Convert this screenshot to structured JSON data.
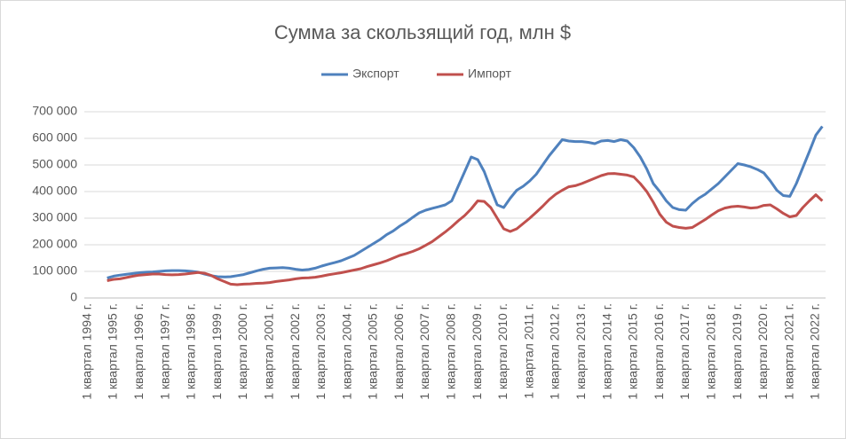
{
  "chart_data": {
    "type": "line",
    "title": "Сумма за скользящий год, млн $",
    "categories": [
      "1 квартал 1994 г.",
      null,
      null,
      null,
      "1 квартал 1995 г.",
      null,
      null,
      null,
      "1 квартал 1996 г.",
      null,
      null,
      null,
      "1 квартал 1997 г.",
      null,
      null,
      null,
      "1 квартал 1998 г.",
      null,
      null,
      null,
      "1 квартал 1999 г.",
      null,
      null,
      null,
      "1 квартал 2000 г.",
      null,
      null,
      null,
      "1 квартал 2001 г.",
      null,
      null,
      null,
      "1 квартал 2002 г.",
      null,
      null,
      null,
      "1 квартал 2003 г.",
      null,
      null,
      null,
      "1 квартал 2004 г.",
      null,
      null,
      null,
      "1 квартал 2005 г.",
      null,
      null,
      null,
      "1 квартал 2006 г.",
      null,
      null,
      null,
      "1 квартал 2007 г.",
      null,
      null,
      null,
      "1 квартал 2008 г.",
      null,
      null,
      null,
      "1 квартал 2009 г.",
      null,
      null,
      null,
      "1 квартал 2010 г.",
      null,
      null,
      null,
      "1 квартал 2011 г.",
      null,
      null,
      null,
      "1 квартал 2012 г.",
      null,
      null,
      null,
      "1 квартал 2013 г.",
      null,
      null,
      null,
      "1 квартал 2014 г.",
      null,
      null,
      null,
      "1 квартал 2015 г.",
      null,
      null,
      null,
      "1 квартал 2016 г.",
      null,
      null,
      null,
      "1 квартал 2017 г.",
      null,
      null,
      null,
      "1 квартал 2018 г.",
      null,
      null,
      null,
      "1 квартал 2019 г.",
      null,
      null,
      null,
      "1 квартал 2020 г.",
      null,
      null,
      null,
      "1 квартал 2021 г.",
      null,
      null,
      null,
      "1 квартал 2022 г.",
      null
    ],
    "series": [
      {
        "name": "Экспорт",
        "color": "#4f81bd",
        "values": [
          null,
          null,
          null,
          75000,
          82000,
          86000,
          89000,
          92000,
          95000,
          97000,
          98000,
          100000,
          102000,
          103000,
          103000,
          102000,
          100000,
          97000,
          90000,
          84000,
          80000,
          79000,
          80000,
          84000,
          88000,
          95000,
          102000,
          108000,
          112000,
          113000,
          114000,
          112000,
          108000,
          105000,
          107000,
          112000,
          120000,
          127000,
          133000,
          140000,
          150000,
          160000,
          175000,
          190000,
          205000,
          220000,
          238000,
          252000,
          270000,
          285000,
          303000,
          320000,
          330000,
          337000,
          343000,
          350000,
          365000,
          420000,
          475000,
          530000,
          520000,
          475000,
          410000,
          350000,
          340000,
          375000,
          405000,
          420000,
          440000,
          465000,
          500000,
          535000,
          565000,
          595000,
          590000,
          588000,
          588000,
          585000,
          580000,
          590000,
          592000,
          588000,
          595000,
          590000,
          565000,
          530000,
          485000,
          430000,
          400000,
          365000,
          340000,
          332000,
          330000,
          355000,
          375000,
          390000,
          410000,
          430000,
          455000,
          480000,
          505000,
          500000,
          493000,
          483000,
          470000,
          440000,
          405000,
          385000,
          382000,
          430000,
          490000,
          550000,
          612000,
          645000
        ]
      },
      {
        "name": "Импорт",
        "color": "#c0504d",
        "values": [
          null,
          null,
          null,
          65000,
          70000,
          72000,
          77000,
          82000,
          86000,
          88000,
          90000,
          90000,
          88000,
          87000,
          88000,
          90000,
          93000,
          96000,
          93000,
          85000,
          72000,
          62000,
          52000,
          50000,
          52000,
          53000,
          55000,
          56000,
          58000,
          62000,
          65000,
          68000,
          72000,
          75000,
          76000,
          78000,
          82000,
          87000,
          91000,
          95000,
          100000,
          105000,
          110000,
          118000,
          125000,
          132000,
          140000,
          150000,
          160000,
          167000,
          175000,
          185000,
          198000,
          212000,
          230000,
          248000,
          268000,
          290000,
          310000,
          335000,
          365000,
          363000,
          340000,
          300000,
          260000,
          250000,
          260000,
          280000,
          300000,
          322000,
          345000,
          370000,
          390000,
          405000,
          418000,
          422000,
          430000,
          440000,
          450000,
          460000,
          467000,
          468000,
          465000,
          462000,
          455000,
          430000,
          400000,
          360000,
          315000,
          285000,
          270000,
          265000,
          262000,
          265000,
          280000,
          295000,
          312000,
          328000,
          338000,
          343000,
          345000,
          342000,
          338000,
          340000,
          348000,
          350000,
          335000,
          318000,
          305000,
          310000,
          340000,
          365000,
          388000,
          365000
        ]
      }
    ],
    "ylim": [
      0,
      700000
    ],
    "yticks": [
      0,
      {
        "value": 100000,
        "label": "100 000"
      },
      {
        "value": 200000,
        "label": "200 000"
      },
      {
        "value": 300000,
        "label": "300 000"
      },
      {
        "value": 400000,
        "label": "400 000"
      },
      {
        "value": 500000,
        "label": "500 000"
      },
      {
        "value": 600000,
        "label": "600 000"
      },
      {
        "value": 700000,
        "label": "700 000"
      }
    ],
    "grid": true,
    "legend": "top"
  }
}
